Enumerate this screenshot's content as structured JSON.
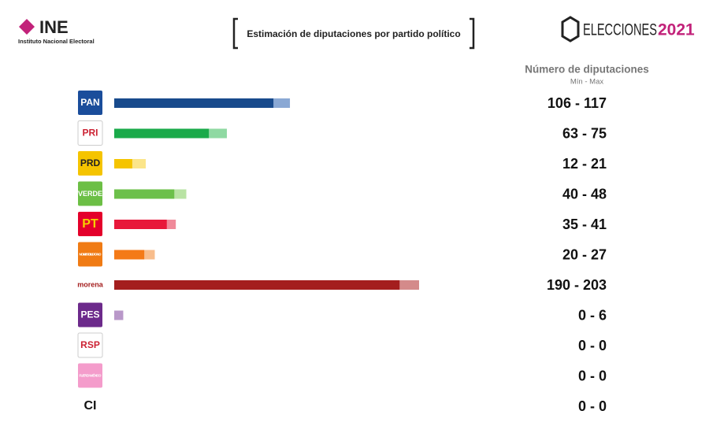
{
  "header": {
    "logo_text": "INE",
    "logo_subtitle": "Instituto Nacional Electoral",
    "brand": "ELECCIONES",
    "brand_year": "2021"
  },
  "chart_data": {
    "type": "range-bar",
    "title": "Estimación de diputaciones por partido político",
    "value_header": "Número de diputaciones",
    "value_subheader": "Mín - Max",
    "categories": [
      "PAN",
      "PRI",
      "PRD",
      "VERDE",
      "PT",
      "MOVIMIENTO CIUDADANO",
      "morena",
      "PES",
      "RSP",
      "FUERZA MÉXICO",
      "CI"
    ],
    "min_values": [
      106,
      63,
      12,
      40,
      35,
      20,
      190,
      0,
      0,
      0,
      0
    ],
    "max_values": [
      117,
      75,
      21,
      48,
      41,
      27,
      203,
      6,
      0,
      0,
      0
    ],
    "value_labels": [
      "106 - 117",
      "63 - 75",
      "12 - 21",
      "40 - 48",
      "35 - 41",
      "20 - 27",
      "190 - 203",
      "0 - 6",
      "0 - 0",
      "0 - 0",
      "0 - 0"
    ],
    "colors": [
      "#184a8c",
      "#1aaa4a",
      "#f5c400",
      "#6cc04a",
      "#e8183a",
      "#f47a17",
      "#a41e1e",
      "#8e5aa6",
      "#cc2233",
      "#f29ac8",
      "#222222"
    ],
    "max_colors": [
      "#8aa8d4",
      "#8fd9a2",
      "#fbe58a",
      "#b9e3a4",
      "#f08a9a",
      "#f8bd8c",
      "#d48a8a",
      "#b998c9",
      "#e69aa2",
      "#f8cce3",
      "#999999"
    ],
    "logo_colors": [
      "#1a4d9b",
      "#ffffff",
      "#f5c400",
      "#6cbf45",
      "#e4002b",
      "#f07b14",
      null,
      "#6c2a8b",
      "#ffffff",
      "#f49ccb",
      null
    ],
    "logo_text_colors": [
      "#ffffff",
      "#cc2233",
      "#222222",
      "#ffffff",
      "#f5d000",
      "#ffffff",
      "#a41e1e",
      "#ffffff",
      "#cc2233",
      "#ffffff",
      "#111111"
    ]
  }
}
